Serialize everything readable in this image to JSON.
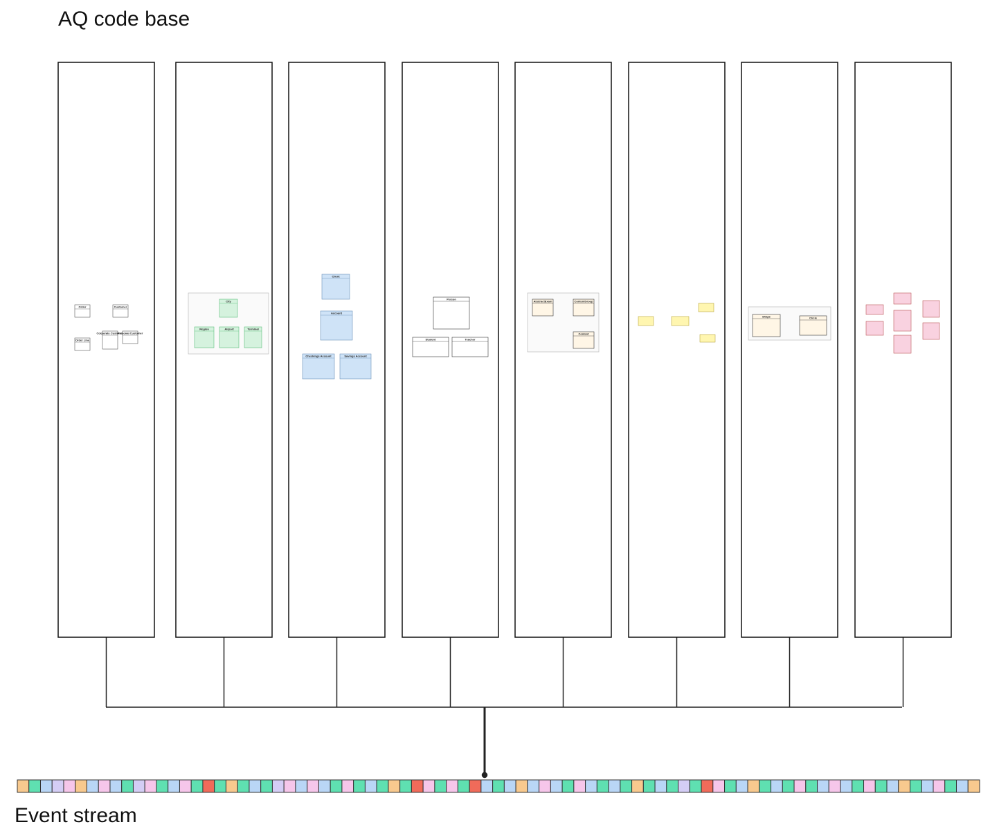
{
  "header": {
    "title": "AQ code base"
  },
  "panels": [
    {
      "classes": [
        "Order",
        "Customer",
        "Order Line",
        "Corporate Customer",
        "Personal Customer"
      ]
    },
    {
      "classes": [
        "City",
        "Region",
        "Airport",
        "Terminal"
      ]
    },
    {
      "classes": [
        "Client",
        "Account",
        "Checkings Account",
        "Savings Account"
      ]
    },
    {
      "classes": [
        "Person",
        "Student",
        "Teacher"
      ]
    },
    {
      "classes": [
        "AbstractExam",
        "ContentGroup",
        "Content"
      ]
    },
    {
      "classes": []
    },
    {
      "classes": [
        "Shape",
        "Circle"
      ]
    },
    {
      "classes": []
    }
  ],
  "footer": {
    "label": "Event stream"
  }
}
